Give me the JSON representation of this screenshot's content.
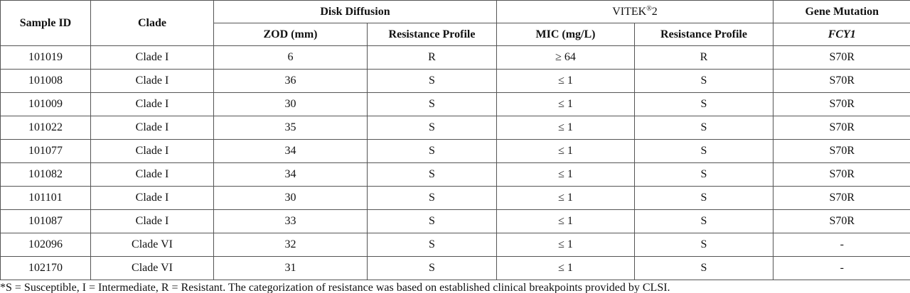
{
  "table": {
    "headers": {
      "sample_id": "Sample ID",
      "clade": "Clade",
      "disk_diffusion": "Disk Diffusion",
      "vitek": [
        "VITEK",
        "®",
        "2"
      ],
      "gene_mutation": "Gene Mutation",
      "sub": [
        "ZOD (mm)",
        "Resistance Profile",
        "MIC (mg/L)",
        "Resistance Profile",
        "FCY1"
      ]
    },
    "rows": [
      [
        "101019",
        "Clade I",
        "6",
        "R",
        "≥ 64",
        "R",
        "S70R"
      ],
      [
        "101008",
        "Clade I",
        "36",
        "S",
        "≤ 1",
        "S",
        "S70R"
      ],
      [
        "101009",
        "Clade I",
        "30",
        "S",
        "≤ 1",
        "S",
        "S70R"
      ],
      [
        "101022",
        "Clade I",
        "35",
        "S",
        "≤ 1",
        "S",
        "S70R"
      ],
      [
        "101077",
        "Clade I",
        "34",
        "S",
        "≤ 1",
        "S",
        "S70R"
      ],
      [
        "101082",
        "Clade I",
        "34",
        "S",
        "≤ 1",
        "S",
        "S70R"
      ],
      [
        "101101",
        "Clade I",
        "30",
        "S",
        "≤ 1",
        "S",
        "S70R"
      ],
      [
        "101087",
        "Clade I",
        "33",
        "S",
        "≤ 1",
        "S",
        "S70R"
      ],
      [
        "102096",
        "Clade VI",
        "32",
        "S",
        "≤ 1",
        "S",
        "-"
      ],
      [
        "102170",
        "Clade VI",
        "31",
        "S",
        "≤ 1",
        "S",
        "-"
      ]
    ],
    "footnote": "*S = Susceptible, I = Intermediate, R = Resistant. The categorization of resistance was based on established clinical breakpoints provided by CLSI."
  }
}
